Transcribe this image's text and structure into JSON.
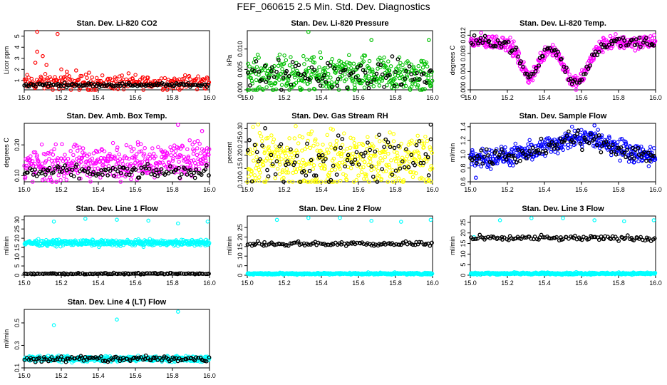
{
  "figure_title": "FEF_060615  2.5 Min. Std. Dev. Diagnostics",
  "chart_data": [
    {
      "type": "scatter",
      "title": "Stan. Dev. Li-820 CO2",
      "ylabel": "Licor ppm",
      "xlabel": "",
      "xlim": [
        15.0,
        16.0
      ],
      "ylim": [
        0.15,
        5.5
      ],
      "xticks": [
        "15.0",
        "15.2",
        "15.4",
        "15.6",
        "15.8",
        "16.0"
      ],
      "yticks": [
        "1",
        "2",
        "3",
        "4",
        "5"
      ],
      "series": [
        {
          "name": "main",
          "color": "#ff0000",
          "base": 0.8,
          "noise": 0.35,
          "n": 260,
          "outliers": [
            [
              15.07,
              5.4
            ],
            [
              15.18,
              5.2
            ],
            [
              15.07,
              3.6
            ],
            [
              15.1,
              3.2
            ],
            [
              15.06,
              2.6
            ],
            [
              15.12,
              2.4
            ],
            [
              15.2,
              2.0
            ],
            [
              15.23,
              1.8
            ],
            [
              15.28,
              1.9
            ],
            [
              15.35,
              1.7
            ]
          ]
        },
        {
          "name": "secondary",
          "color": "#000000",
          "base": 0.6,
          "noise": 0.08,
          "n": 120,
          "outliers": []
        }
      ]
    },
    {
      "type": "scatter",
      "title": "Stan. Dev. Li-820 Pressure",
      "ylabel": "kPa",
      "xlabel": "",
      "xlim": [
        15.0,
        16.0
      ],
      "ylim": [
        0.0,
        0.0145
      ],
      "xticks": [
        "15.0",
        "15.2",
        "15.4",
        "15.6",
        "15.8",
        "16.0"
      ],
      "yticks": [
        "0.000",
        "0.005",
        "0.010"
      ],
      "series": [
        {
          "name": "main",
          "color": "#00c000",
          "base": 0.0035,
          "noise": 0.0022,
          "n": 420,
          "outliers": [
            [
              15.33,
              0.0142
            ],
            [
              15.67,
              0.0122
            ],
            [
              15.98,
              0.0122
            ]
          ]
        },
        {
          "name": "secondary",
          "color": "#000000",
          "base": 0.0035,
          "noise": 0.0018,
          "n": 90,
          "outliers": []
        }
      ]
    },
    {
      "type": "scatter",
      "title": "Stan. Dev. Li-820 Temp.",
      "ylabel": "degrees C",
      "xlabel": "",
      "xlim": [
        15.0,
        16.0
      ],
      "ylim": [
        0.0,
        0.013
      ],
      "xticks": [
        "15.0",
        "15.2",
        "15.4",
        "15.6",
        "15.8",
        "16.0"
      ],
      "yticks": [
        "0.000",
        "0.004",
        "0.008",
        "0.012"
      ],
      "series": [
        {
          "name": "main",
          "color": "#ff00ff",
          "base": 0.0105,
          "noise": 0.0008,
          "n": 420,
          "dips": [
            [
              15.32,
              0.0075,
              0.07
            ],
            [
              15.57,
              0.009,
              0.09
            ]
          ],
          "outliers": []
        },
        {
          "name": "secondary",
          "color": "#000000",
          "base": 0.0105,
          "noise": 0.0006,
          "n": 110,
          "dips": [
            [
              15.32,
              0.0075,
              0.07
            ],
            [
              15.57,
              0.009,
              0.09
            ]
          ],
          "outliers": []
        }
      ]
    },
    {
      "type": "scatter",
      "title": "Stan. Dev. Amb. Box Temp.",
      "ylabel": "degrees C",
      "xlabel": "",
      "xlim": [
        15.0,
        16.0
      ],
      "ylim": [
        0.08,
        0.27
      ],
      "xticks": [
        "15.0",
        "15.2",
        "15.4",
        "15.6",
        "15.8",
        "16.0"
      ],
      "yticks": [
        "0.10",
        "0.20"
      ],
      "series": [
        {
          "name": "main",
          "color": "#ff00ff",
          "base": 0.13,
          "slope": 0.03,
          "noise": 0.028,
          "n": 420,
          "outliers": [
            [
              15.83,
              0.265
            ],
            [
              15.96,
              0.245
            ]
          ]
        },
        {
          "name": "secondary",
          "color": "#000000",
          "base": 0.112,
          "noise": 0.01,
          "n": 110,
          "outliers": []
        }
      ]
    },
    {
      "type": "scatter",
      "title": "Stan. Dev. Gas Stream RH",
      "ylabel": "percent",
      "xlabel": "",
      "xlim": [
        15.0,
        16.0
      ],
      "ylim": [
        0.1,
        0.32
      ],
      "xticks": [
        "15.0",
        "15.2",
        "15.4",
        "15.6",
        "15.8",
        "16.0"
      ],
      "yticks": [
        "0.10",
        "0.15",
        "0.20",
        "0.25",
        "0.30"
      ],
      "series": [
        {
          "name": "main",
          "color": "#ffff00",
          "base": 0.18,
          "noise": 0.055,
          "n": 420,
          "outliers": []
        },
        {
          "name": "secondary",
          "color": "#000000",
          "base": 0.18,
          "noise": 0.05,
          "n": 90,
          "outliers": [
            [
              15.99,
              0.315
            ]
          ]
        }
      ]
    },
    {
      "type": "scatter",
      "title": "Stan. Dev. Sample Flow",
      "ylabel": "ml/min",
      "xlabel": "",
      "xlim": [
        15.0,
        16.0
      ],
      "ylim": [
        0.6,
        1.45
      ],
      "xticks": [
        "15.0",
        "15.2",
        "15.4",
        "15.6",
        "15.8",
        "16.0"
      ],
      "yticks": [
        "0.6",
        "0.8",
        "1.0",
        "1.2",
        "1.4"
      ],
      "series": [
        {
          "name": "main",
          "color": "#0000ff",
          "base": 0.95,
          "hump": 0.28,
          "noise": 0.07,
          "n": 420,
          "outliers": [
            [
              15.67,
              1.42
            ],
            [
              15.03,
              0.66
            ]
          ]
        },
        {
          "name": "secondary",
          "color": "#000000",
          "base": 0.95,
          "hump": 0.26,
          "noise": 0.06,
          "n": 110,
          "outliers": []
        }
      ]
    },
    {
      "type": "scatter",
      "title": "Stan. Dev. Line 1 Flow",
      "ylabel": "ml/min",
      "xlabel": "",
      "xlim": [
        15.0,
        16.0
      ],
      "ylim": [
        0,
        32
      ],
      "xticks": [
        "15.0",
        "15.2",
        "15.4",
        "15.6",
        "15.8",
        "16.0"
      ],
      "yticks": [
        "0",
        "5",
        "10",
        "15",
        "20",
        "25",
        "30"
      ],
      "series": [
        {
          "name": "main",
          "color": "#00ffff",
          "base": 17.5,
          "noise": 0.8,
          "n": 420,
          "outliers": [
            [
              15.16,
              29
            ],
            [
              15.33,
              30.5
            ],
            [
              15.5,
              30
            ],
            [
              15.67,
              29.5
            ],
            [
              15.83,
              28
            ],
            [
              15.99,
              29
            ]
          ]
        },
        {
          "name": "secondary",
          "color": "#000000",
          "base": 0.8,
          "noise": 0.2,
          "n": 110,
          "outliers": []
        }
      ]
    },
    {
      "type": "scatter",
      "title": "Stan. Dev. Line 2 Flow",
      "ylabel": "ml/min",
      "xlabel": "",
      "xlim": [
        15.0,
        16.0
      ],
      "ylim": [
        0,
        31
      ],
      "xticks": [
        "15.0",
        "15.2",
        "15.4",
        "15.6",
        "15.8",
        "16.0"
      ],
      "yticks": [
        "0",
        "5",
        "10",
        "15",
        "20",
        "25"
      ],
      "series": [
        {
          "name": "main",
          "color": "#00ffff",
          "base": 0.8,
          "noise": 0.25,
          "n": 420,
          "outliers": [
            [
              15.16,
              29
            ],
            [
              15.33,
              30
            ],
            [
              15.5,
              30
            ],
            [
              15.67,
              28.5
            ],
            [
              15.83,
              28
            ],
            [
              15.99,
              29
            ]
          ]
        },
        {
          "name": "secondary",
          "color": "#000000",
          "base": 16.5,
          "noise": 0.6,
          "n": 110,
          "outliers": []
        }
      ]
    },
    {
      "type": "scatter",
      "title": "Stan. Dev. Line 3 Flow",
      "ylabel": "ml/min",
      "xlabel": "",
      "xlim": [
        15.0,
        16.0
      ],
      "ylim": [
        0,
        28
      ],
      "xticks": [
        "15.0",
        "15.2",
        "15.4",
        "15.6",
        "15.8",
        "16.0"
      ],
      "yticks": [
        "0",
        "5",
        "10",
        "15",
        "20",
        "25"
      ],
      "series": [
        {
          "name": "main",
          "color": "#00ffff",
          "base": 0.8,
          "noise": 0.25,
          "n": 420,
          "outliers": [
            [
              15.02,
              18
            ],
            [
              15.16,
              26
            ],
            [
              15.33,
              27
            ],
            [
              15.5,
              27
            ],
            [
              15.67,
              26
            ],
            [
              15.83,
              25.5
            ],
            [
              15.99,
              26
            ]
          ]
        },
        {
          "name": "secondary",
          "color": "#000000",
          "base": 17.5,
          "noise": 0.6,
          "n": 110,
          "outliers": []
        }
      ]
    },
    {
      "type": "scatter",
      "title": "Stan. Dev. Line 4 (LT) Flow",
      "ylabel": "ml/min",
      "xlabel": "",
      "xlim": [
        15.0,
        16.0
      ],
      "ylim": [
        0.1,
        0.62
      ],
      "xticks": [
        "15.0",
        "15.2",
        "15.4",
        "15.6",
        "15.8",
        "16.0"
      ],
      "yticks": [
        "0.1",
        "0.3",
        "0.5"
      ],
      "series": [
        {
          "name": "main",
          "color": "#00ffff",
          "base": 0.18,
          "noise": 0.012,
          "n": 420,
          "outliers": [
            [
              15.16,
              0.48
            ],
            [
              15.5,
              0.53
            ],
            [
              15.83,
              0.6
            ]
          ]
        },
        {
          "name": "secondary",
          "color": "#000000",
          "base": 0.18,
          "noise": 0.015,
          "n": 110,
          "outliers": []
        }
      ]
    }
  ]
}
